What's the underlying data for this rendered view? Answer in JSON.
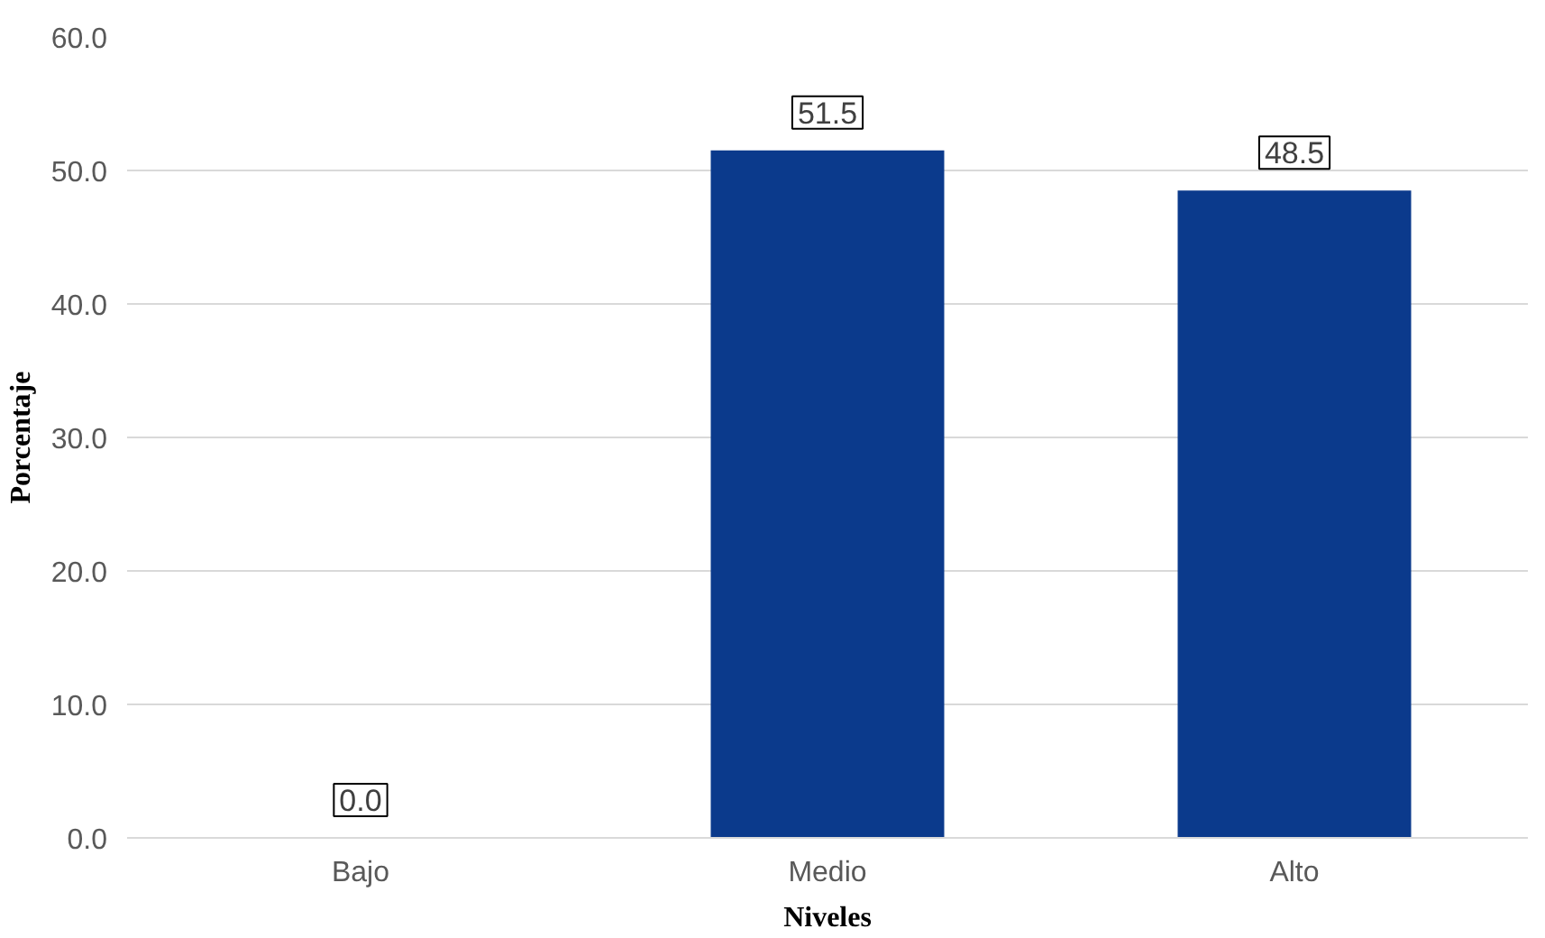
{
  "chart_data": {
    "type": "bar",
    "xlabel": "Niveles",
    "ylabel": "Porcentaje",
    "categories": [
      "Bajo",
      "Medio",
      "Alto"
    ],
    "values": [
      0.0,
      51.5,
      48.5
    ],
    "value_labels": [
      "0.0",
      "51.5",
      "48.5"
    ],
    "color": "#0b3a8c",
    "ylim": [
      0,
      60
    ],
    "yticks": [
      {
        "value": 0,
        "label": "0.0"
      },
      {
        "value": 10,
        "label": "10.0"
      },
      {
        "value": 20,
        "label": "20.0"
      },
      {
        "value": 30,
        "label": "30.0"
      },
      {
        "value": 40,
        "label": "40.0"
      },
      {
        "value": 50,
        "label": "50.0"
      },
      {
        "value": 60,
        "label": "60.0"
      }
    ],
    "grid": "y"
  }
}
